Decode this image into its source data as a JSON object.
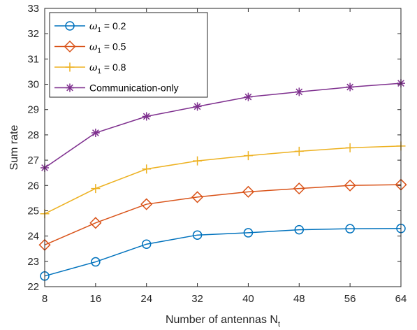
{
  "chart_data": {
    "type": "line",
    "xlabel_text": "Number of antennas N",
    "xlabel_sub": "t",
    "ylabel": "Sum rate",
    "x": [
      8,
      16,
      24,
      32,
      40,
      48,
      56,
      64
    ],
    "xlim": [
      8,
      64
    ],
    "ylim": [
      22,
      33
    ],
    "xticks": [
      "8",
      "16",
      "24",
      "32",
      "40",
      "48",
      "56",
      "64"
    ],
    "yticks": [
      "22",
      "23",
      "24",
      "25",
      "26",
      "27",
      "28",
      "29",
      "30",
      "31",
      "32",
      "33"
    ],
    "grid": false,
    "legend_position": "top-left",
    "series": [
      {
        "name": "ω1 = 0.2",
        "legend_symbol": "ω",
        "legend_sub": "1",
        "legend_rest": " = 0.2",
        "color": "#0072BD",
        "marker": "circle",
        "values": [
          22.42,
          22.98,
          23.68,
          24.04,
          24.13,
          24.25,
          24.29,
          24.3
        ]
      },
      {
        "name": "ω1 = 0.5",
        "legend_symbol": "ω",
        "legend_sub": "1",
        "legend_rest": " = 0.5",
        "color": "#D95319",
        "marker": "diamond",
        "values": [
          23.65,
          24.52,
          25.26,
          25.54,
          25.75,
          25.88,
          26.0,
          26.03
        ]
      },
      {
        "name": "ω1 = 0.8",
        "legend_symbol": "ω",
        "legend_sub": "1",
        "legend_rest": " = 0.8",
        "color": "#EDB120",
        "marker": "plus",
        "values": [
          24.88,
          25.88,
          26.65,
          26.97,
          27.18,
          27.35,
          27.49,
          27.56
        ]
      },
      {
        "name": "Communication-only",
        "legend_symbol": "",
        "legend_sub": "",
        "legend_rest": "Communication-only",
        "color": "#7E2F8E",
        "marker": "asterisk",
        "values": [
          26.7,
          28.08,
          28.73,
          29.12,
          29.5,
          29.7,
          29.89,
          30.04
        ]
      }
    ]
  }
}
